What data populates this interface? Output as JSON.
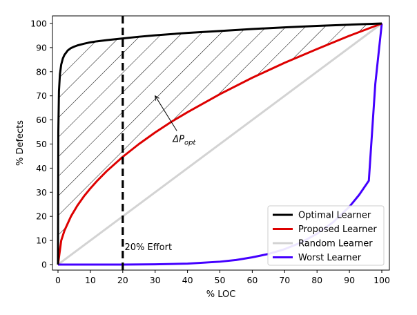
{
  "chart_data": {
    "type": "line",
    "xlabel": "% LOC",
    "ylabel": "% Defects",
    "xlim": [
      0,
      100
    ],
    "ylim": [
      0,
      100
    ],
    "xticks": [
      0,
      10,
      20,
      30,
      40,
      50,
      60,
      70,
      80,
      90,
      100
    ],
    "yticks": [
      0,
      10,
      20,
      30,
      40,
      50,
      60,
      70,
      80,
      90,
      100
    ],
    "grid": false,
    "legend_position": "bottom-right",
    "series": [
      {
        "name": "Optimal Learner",
        "color": "#000000",
        "x": [
          0,
          0.1,
          0.3,
          0.6,
          1,
          1.5,
          2,
          3,
          4,
          5,
          6,
          8,
          10,
          12,
          15,
          20,
          25,
          30,
          40,
          50,
          60,
          70,
          80,
          90,
          100
        ],
        "y": [
          0,
          55,
          72,
          79,
          83,
          85.5,
          87,
          88.8,
          89.8,
          90.4,
          90.9,
          91.6,
          92.2,
          92.6,
          93.1,
          93.8,
          94.5,
          95.1,
          96.1,
          96.9,
          97.7,
          98.4,
          99,
          99.5,
          100
        ]
      },
      {
        "name": "Proposed Learner",
        "color": "#dd0000",
        "x": [
          0,
          1,
          2,
          4,
          6,
          8,
          10,
          12,
          15,
          20,
          25,
          30,
          35,
          40,
          50,
          60,
          70,
          80,
          90,
          100
        ],
        "y": [
          0,
          10,
          14.1,
          20,
          24.5,
          28.3,
          31.6,
          34.6,
          38.7,
          44.7,
          50,
          54.8,
          59.2,
          63.2,
          70.7,
          77.5,
          83.7,
          89.4,
          94.9,
          100
        ]
      },
      {
        "name": "Random Learner",
        "color": "#d3d3d3",
        "x": [
          0,
          100
        ],
        "y": [
          0,
          100
        ]
      },
      {
        "name": "Worst Learner",
        "color": "#4400ff",
        "x": [
          0,
          20,
          30,
          40,
          50,
          55,
          60,
          65,
          70,
          75,
          80,
          85,
          90,
          93,
          96,
          98,
          100
        ],
        "y": [
          0,
          0,
          0.1,
          0.4,
          1.2,
          1.9,
          3,
          4.4,
          6.4,
          9.1,
          12.8,
          17.6,
          24,
          28.9,
          34.8,
          75,
          100
        ]
      }
    ],
    "annotations": [
      {
        "text_prefix": "ΔP",
        "text_sub": "opt",
        "x": 38,
        "y": 50,
        "arrow_to": [
          30,
          70
        ]
      },
      {
        "text": "20% Effort",
        "x": 21,
        "y": 6
      }
    ],
    "reference_line": {
      "x": 20,
      "style": "dashed",
      "color": "#000000"
    },
    "hatched_region": {
      "between": [
        "Optimal Learner",
        "Proposed Learner"
      ]
    }
  }
}
